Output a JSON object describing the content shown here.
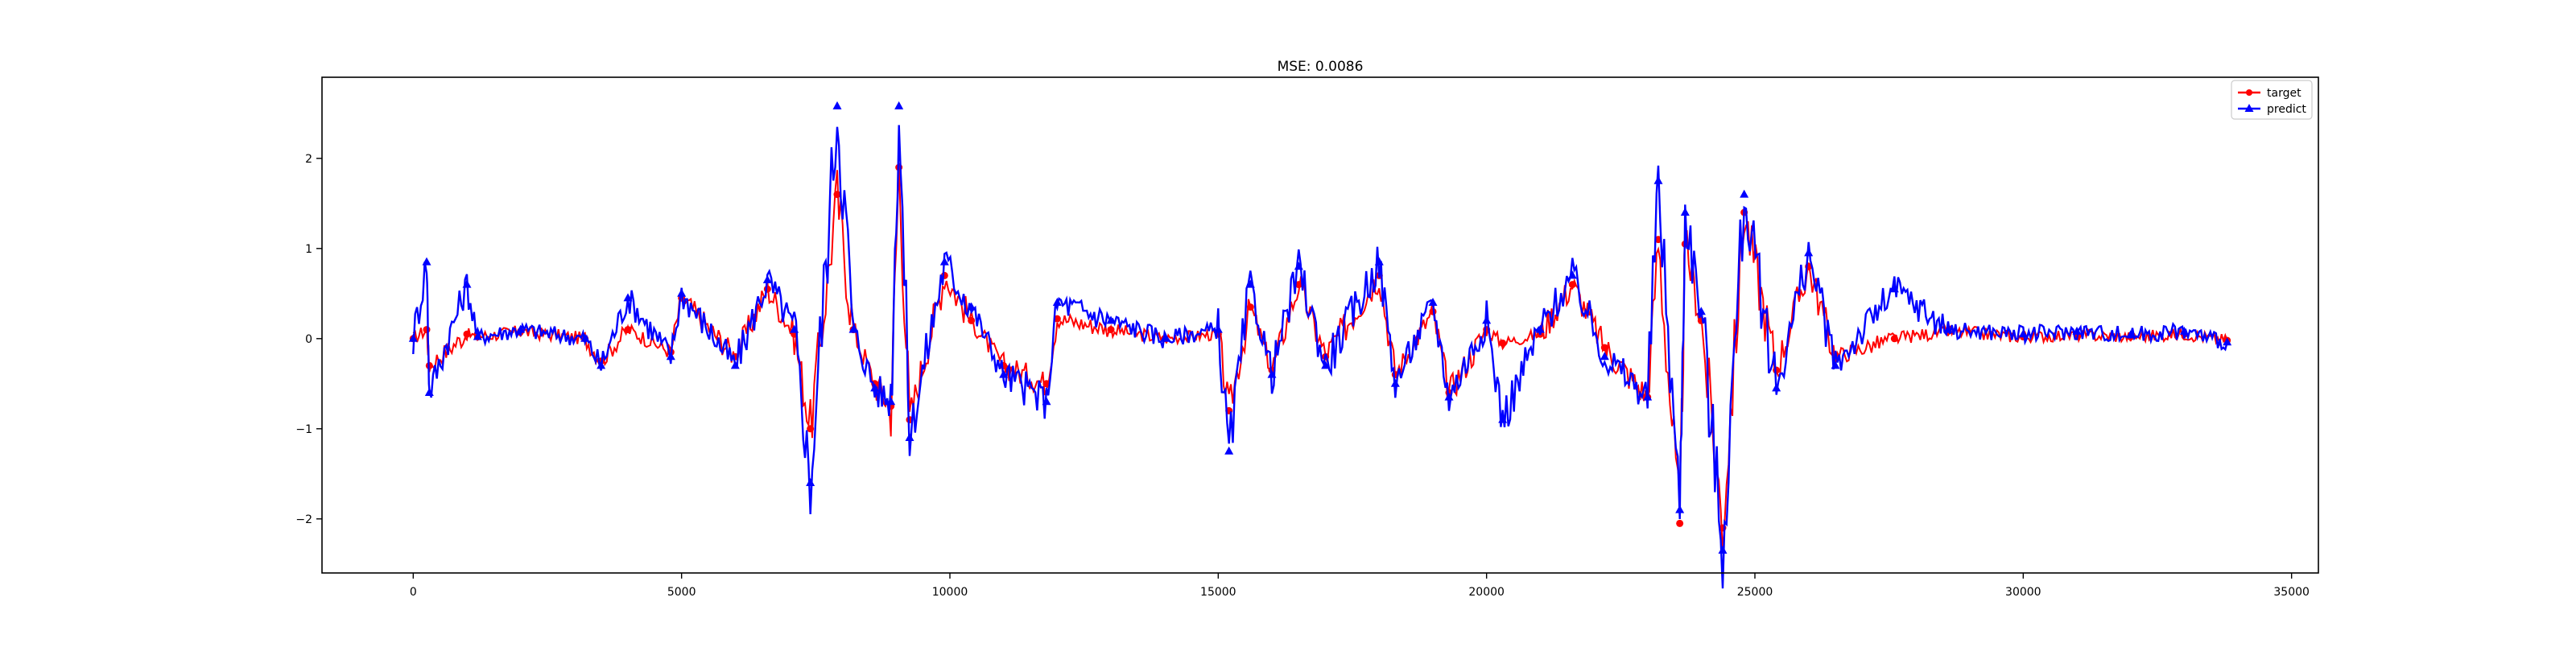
{
  "chart_data": {
    "type": "line",
    "title": "MSE: 0.0086",
    "xlabel": "",
    "ylabel": "",
    "xlim": [
      -1700,
      35500
    ],
    "ylim": [
      -2.6,
      2.9
    ],
    "x_ticks": [
      0,
      5000,
      10000,
      15000,
      20000,
      25000,
      30000,
      35000
    ],
    "x_tick_labels": [
      "0",
      "5000",
      "10000",
      "15000",
      "20000",
      "25000",
      "30000",
      "35000"
    ],
    "y_ticks": [
      -2,
      -1,
      0,
      1,
      2
    ],
    "y_tick_labels": [
      "−2",
      "−1",
      "0",
      "1",
      "2"
    ],
    "grid": false,
    "legend_position": "top-right",
    "series": [
      {
        "name": "target",
        "color": "#ff0000",
        "marker": "circle",
        "x": [
          0,
          250,
          300,
          1000,
          1200,
          2000,
          3200,
          3500,
          4000,
          4800,
          5000,
          6000,
          6600,
          7100,
          7400,
          7900,
          8200,
          8600,
          8900,
          9050,
          9250,
          9900,
          10400,
          11000,
          11800,
          12000,
          13000,
          14000,
          15000,
          15200,
          15600,
          16000,
          16500,
          17000,
          18000,
          18300,
          19000,
          19300,
          20000,
          20300,
          21000,
          21600,
          22200,
          23000,
          23200,
          23600,
          23700,
          24000,
          24400,
          24800,
          25400,
          26000,
          26500,
          27600,
          28600,
          30000,
          31000,
          32000,
          33000,
          33800
        ],
        "y": [
          0,
          0.1,
          -0.3,
          0.05,
          0.02,
          0.08,
          0.0,
          -0.25,
          0.1,
          -0.15,
          0.45,
          -0.2,
          0.55,
          0.05,
          -1.0,
          1.6,
          0.1,
          -0.5,
          -0.75,
          1.9,
          -0.9,
          0.7,
          0.2,
          -0.3,
          -0.5,
          0.22,
          0.1,
          0.0,
          0.05,
          -0.8,
          0.35,
          -0.35,
          0.6,
          -0.2,
          0.7,
          -0.4,
          0.3,
          -0.6,
          0.1,
          -0.05,
          0.05,
          0.6,
          -0.1,
          -0.65,
          1.1,
          -2.05,
          1.05,
          0.2,
          -2.1,
          1.4,
          -0.35,
          0.8,
          -0.2,
          0.0,
          0.08,
          0.02,
          0.04,
          0.02,
          0.05,
          -0.02
        ]
      },
      {
        "name": "predict",
        "color": "#0000ff",
        "marker": "triangle",
        "x": [
          0,
          250,
          300,
          1000,
          1200,
          2000,
          3200,
          3500,
          4000,
          4800,
          5000,
          6000,
          6600,
          7100,
          7400,
          7900,
          8200,
          8600,
          8900,
          9050,
          9250,
          9900,
          10400,
          11000,
          11800,
          12000,
          13000,
          14000,
          15000,
          15200,
          15600,
          16000,
          16500,
          17000,
          18000,
          18300,
          19000,
          19300,
          20000,
          20300,
          21000,
          21600,
          22200,
          23000,
          23200,
          23600,
          23700,
          24000,
          24400,
          24800,
          25400,
          26000,
          26500,
          27600,
          28600,
          30000,
          31000,
          32000,
          33000,
          33800
        ],
        "y": [
          0,
          0.85,
          -0.6,
          0.6,
          0.02,
          0.1,
          0.0,
          -0.3,
          0.45,
          -0.2,
          0.5,
          -0.3,
          0.65,
          0.1,
          -1.6,
          2.58,
          0.1,
          -0.55,
          -0.7,
          2.58,
          -1.1,
          0.85,
          0.35,
          -0.4,
          -0.7,
          0.4,
          0.2,
          0.0,
          0.1,
          -1.25,
          0.6,
          -0.4,
          0.8,
          -0.3,
          0.85,
          -0.5,
          0.4,
          -0.65,
          0.2,
          -0.9,
          0.1,
          0.7,
          -0.2,
          -0.65,
          1.75,
          -1.9,
          1.4,
          0.3,
          -2.35,
          1.6,
          -0.55,
          0.95,
          -0.3,
          0.55,
          0.1,
          0.05,
          0.08,
          0.04,
          0.08,
          -0.04
        ]
      }
    ]
  }
}
